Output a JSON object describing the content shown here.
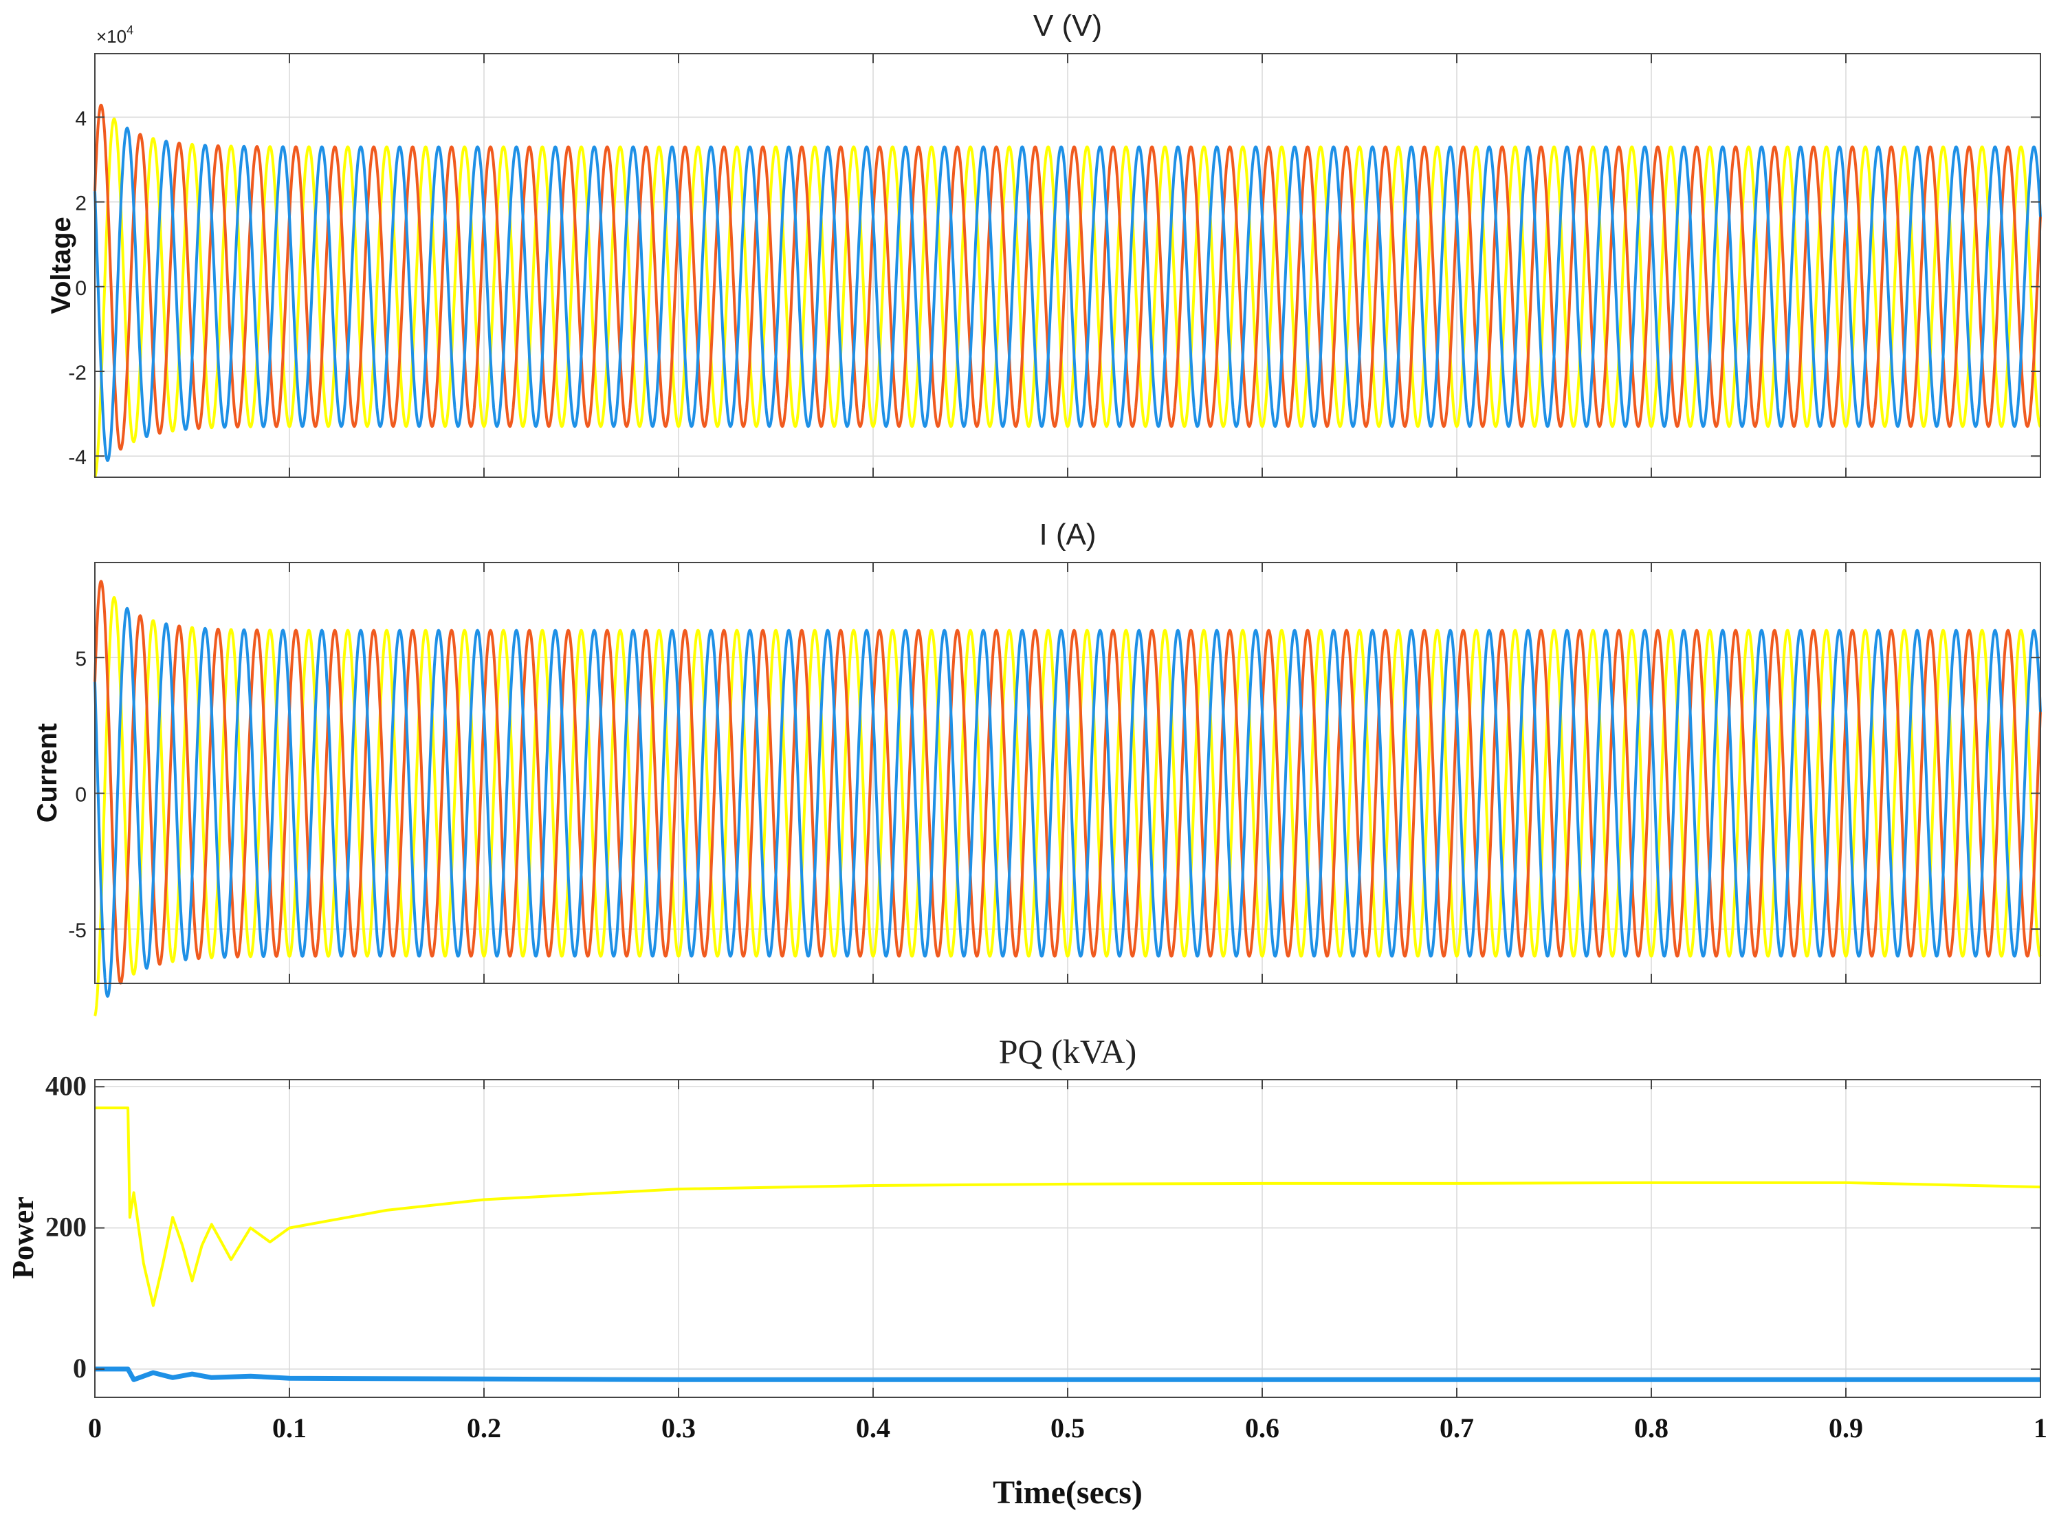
{
  "colors": {
    "phase_a": "#ffff00",
    "phase_b": "#f05a1e",
    "phase_c": "#1e90e6",
    "p": "#ffff00",
    "q": "#1e90e6"
  },
  "chart_data": [
    {
      "type": "line",
      "title": "V (V)",
      "ylabel": "Voltage",
      "multiplier": "×10",
      "multiplier_exp": "4",
      "xlim": [
        0,
        1
      ],
      "ylim": [
        -4.5,
        5.5
      ],
      "ytick_values": [
        -4,
        -2,
        0,
        2,
        4
      ],
      "ytick_labels": [
        "-4",
        "-2",
        "0",
        "2",
        "4"
      ],
      "grid": true,
      "signal": {
        "frequency_hz": 50,
        "steady_amplitude": 3.3,
        "transient_peak": 4.5,
        "transient_end": 0.05
      },
      "series": [
        {
          "phase_deg": -90
        },
        {
          "phase_deg": 30
        },
        {
          "phase_deg": 150
        }
      ]
    },
    {
      "type": "line",
      "title": "I (A)",
      "ylabel": "Current",
      "xlim": [
        0,
        1
      ],
      "ylim": [
        -7,
        8.5
      ],
      "ytick_values": [
        -5,
        0,
        5
      ],
      "ytick_labels": [
        "-5",
        "0",
        "5"
      ],
      "grid": true,
      "signal": {
        "frequency_hz": 50,
        "steady_amplitude": 6.0,
        "transient_peak": 8.2,
        "transient_end": 0.05
      },
      "series": [
        {
          "phase_deg": -90
        },
        {
          "phase_deg": 30
        },
        {
          "phase_deg": 150
        }
      ]
    },
    {
      "type": "line",
      "title": "PQ (kVA)",
      "ylabel": "Power",
      "xlabel": "Time(secs)",
      "xlim": [
        0,
        1
      ],
      "ylim": [
        -40,
        410
      ],
      "ytick_values": [
        0,
        200,
        400
      ],
      "ytick_labels": [
        "0",
        "200",
        "400"
      ],
      "xtick_values": [
        0,
        0.1,
        0.2,
        0.3,
        0.4,
        0.5,
        0.6,
        0.7,
        0.8,
        0.9,
        1
      ],
      "xtick_labels": [
        "0",
        "0.1",
        "0.2",
        "0.3",
        "0.4",
        "0.5",
        "0.6",
        "0.7",
        "0.8",
        "0.9",
        "1"
      ],
      "grid": true,
      "series": [
        {
          "x": [
            0,
            0.017,
            0.018,
            0.02,
            0.025,
            0.03,
            0.035,
            0.04,
            0.045,
            0.05,
            0.055,
            0.06,
            0.065,
            0.07,
            0.08,
            0.09,
            0.1,
            0.12,
            0.15,
            0.2,
            0.3,
            0.4,
            0.5,
            0.6,
            0.7,
            0.8,
            0.9,
            1
          ],
          "y": [
            370,
            370,
            215,
            250,
            150,
            90,
            150,
            215,
            175,
            125,
            175,
            205,
            180,
            155,
            200,
            180,
            200,
            210,
            225,
            240,
            255,
            260,
            262,
            263,
            263,
            264,
            264,
            258
          ]
        },
        {
          "x": [
            0,
            0.017,
            0.02,
            0.03,
            0.04,
            0.05,
            0.06,
            0.08,
            0.1,
            0.2,
            0.3,
            0.5,
            0.7,
            1
          ],
          "y": [
            0,
            0,
            -15,
            -5,
            -12,
            -7,
            -12,
            -10,
            -13,
            -14,
            -15,
            -15,
            -15,
            -15
          ]
        }
      ]
    }
  ]
}
